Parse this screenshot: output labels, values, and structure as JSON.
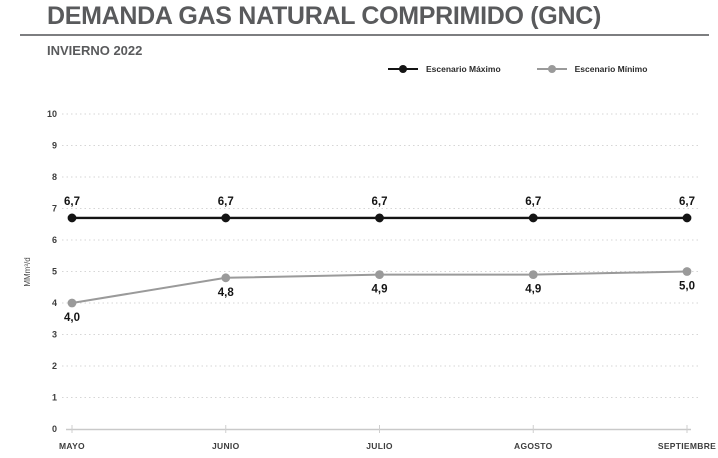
{
  "header": {
    "title": "DEMANDA GAS NATURAL COMPRIMIDO (GNC)",
    "subtitle": "INVIERNO 2022"
  },
  "legend": [
    {
      "label": "Escenario Máximo",
      "color": "#141414"
    },
    {
      "label": "Escenario Mínimo",
      "color": "#9a9a9a"
    }
  ],
  "chart_data": {
    "type": "line",
    "title": "DEMANDA GAS NATURAL COMPRIMIDO (GNC)",
    "subtitle": "INVIERNO 2022",
    "categories": [
      "MAYO",
      "JUNIO",
      "JULIO",
      "AGOSTO",
      "SEPTIEMBRE"
    ],
    "xlabel": "",
    "ylabel": "MMm³/d",
    "ylim": [
      0,
      10
    ],
    "ytick_step": 1,
    "grid": "horizontal-dotted",
    "legend_position": "top-right",
    "series": [
      {
        "name": "Escenario Máximo",
        "color": "#141414",
        "values": [
          6.7,
          6.7,
          6.7,
          6.7,
          6.7
        ],
        "point_labels": [
          "6,7",
          "6,7",
          "6,7",
          "6,7",
          "6,7"
        ],
        "label_position": "above"
      },
      {
        "name": "Escenario Mínimo",
        "color": "#9a9a9a",
        "values": [
          4.0,
          4.8,
          4.9,
          4.9,
          5.0
        ],
        "point_labels": [
          "4,0",
          "4,8",
          "4,9",
          "4,9",
          "5,0"
        ],
        "label_position": "below"
      }
    ]
  }
}
